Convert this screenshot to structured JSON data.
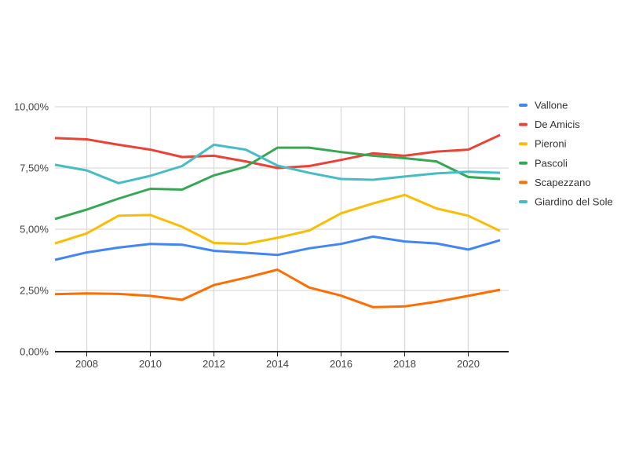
{
  "chart_data": {
    "type": "line",
    "title": "",
    "xlabel": "",
    "ylabel": "",
    "x": [
      2007,
      2008,
      2009,
      2010,
      2011,
      2012,
      2013,
      2014,
      2015,
      2016,
      2017,
      2018,
      2019,
      2020,
      2021
    ],
    "xlim": [
      2007,
      2021
    ],
    "ylim": [
      0,
      10
    ],
    "grid": true,
    "legend_position": "right",
    "x_ticks": [
      2008,
      2010,
      2012,
      2014,
      2016,
      2018,
      2020
    ],
    "x_tick_labels": [
      "2008",
      "2010",
      "2012",
      "2014",
      "2016",
      "2018",
      "2020"
    ],
    "y_ticks": [
      0,
      2.5,
      5,
      7.5,
      10
    ],
    "y_tick_labels": [
      "0,00%",
      "2,50%",
      "5,00%",
      "7,50%",
      "10,00%"
    ],
    "series": [
      {
        "name": "Vallone",
        "color": "#4285F4",
        "values": [
          3.75,
          4.05,
          4.25,
          4.4,
          4.37,
          4.12,
          4.04,
          3.95,
          4.22,
          4.4,
          4.7,
          4.5,
          4.42,
          4.17,
          4.55
        ]
      },
      {
        "name": "De Amicis",
        "color": "#EA4335",
        "values": [
          8.72,
          8.67,
          8.45,
          8.25,
          7.95,
          8.0,
          7.77,
          7.5,
          7.58,
          7.83,
          8.1,
          8.0,
          8.17,
          8.25,
          8.85
        ]
      },
      {
        "name": "Pieroni",
        "color": "#FBBC04",
        "values": [
          4.42,
          4.83,
          5.55,
          5.58,
          5.1,
          4.44,
          4.4,
          4.65,
          4.95,
          5.65,
          6.05,
          6.4,
          5.85,
          5.55,
          4.93
        ]
      },
      {
        "name": "Pascoli",
        "color": "#34A853",
        "values": [
          5.42,
          5.8,
          6.25,
          6.65,
          6.62,
          7.2,
          7.55,
          8.33,
          8.33,
          8.15,
          8.0,
          7.9,
          7.77,
          7.13,
          7.05
        ]
      },
      {
        "name": "Scapezzano",
        "color": "#FF6D01",
        "values": [
          2.35,
          2.38,
          2.36,
          2.28,
          2.12,
          2.72,
          3.02,
          3.35,
          2.62,
          2.29,
          1.82,
          1.85,
          2.04,
          2.28,
          2.53
        ]
      },
      {
        "name": "Giardino del Sole",
        "color": "#46BDC6",
        "values": [
          7.63,
          7.4,
          6.88,
          7.18,
          7.58,
          8.45,
          8.25,
          7.6,
          7.3,
          7.05,
          7.02,
          7.15,
          7.28,
          7.35,
          7.3
        ]
      }
    ],
    "colors": {
      "background": "#ffffff",
      "gridline": "#d9d9d9",
      "axis": "#212121",
      "tick_text": "#424242",
      "legend_text": "#333333"
    }
  }
}
